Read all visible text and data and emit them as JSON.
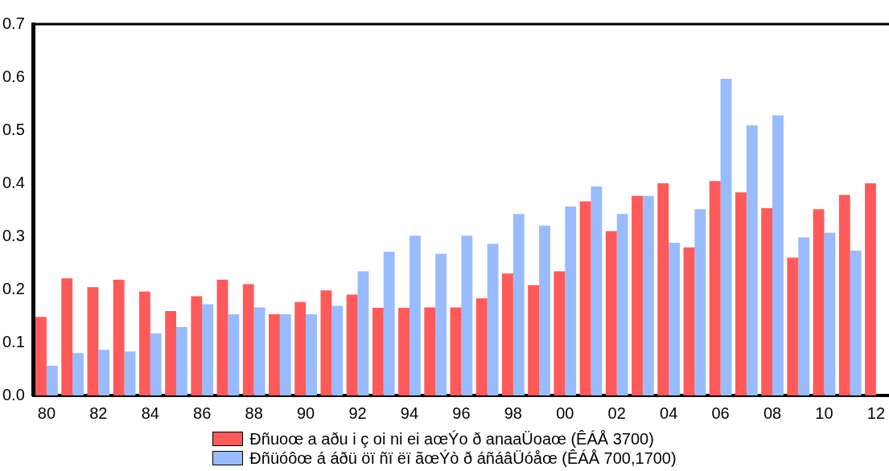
{
  "chart_data": {
    "type": "bar",
    "categories": [
      "80",
      null,
      "82",
      null,
      "84",
      null,
      "86",
      null,
      "88",
      null,
      "90",
      null,
      "92",
      null,
      "94",
      null,
      "96",
      null,
      "98",
      null,
      "00",
      null,
      "02",
      null,
      "04",
      null,
      "06",
      null,
      "08",
      null,
      "10",
      null,
      "12"
    ],
    "series": [
      {
        "name": "Ðñuoœ a aðu i ç oi ni ei aœÝo ð anaaÜoaœ (ÊÁÅ 3700)",
        "color": "#ff5a5a",
        "values": [
          0.148,
          0.221,
          0.204,
          0.218,
          0.196,
          0.159,
          0.187,
          0.218,
          0.21,
          0.153,
          0.176,
          0.198,
          0.19,
          0.165,
          0.165,
          0.166,
          0.166,
          0.183,
          0.23,
          0.208,
          0.234,
          0.366,
          0.31,
          0.376,
          0.4,
          0.279,
          0.404,
          0.383,
          0.353,
          0.26,
          0.351,
          0.378,
          0.4
        ]
      },
      {
        "name": "Ðñüóôœ á áðü öï ñï ëï ãœÝò ð áñáâÜóåœ (ÊÁÅ 700,1700)",
        "color": "#99bbff",
        "values": [
          0.056,
          0.08,
          0.086,
          0.083,
          0.117,
          0.129,
          0.172,
          0.153,
          0.166,
          0.153,
          0.153,
          0.169,
          0.234,
          0.271,
          0.301,
          0.267,
          0.301,
          0.286,
          0.342,
          0.32,
          0.356,
          0.394,
          0.342,
          0.376,
          0.288,
          0.351,
          0.597,
          0.509,
          0.528,
          0.298,
          0.307,
          0.273,
          null
        ]
      }
    ],
    "ylim": [
      0,
      0.7
    ],
    "yticks": [
      {
        "value": 0,
        "label": "0.0"
      },
      0.1,
      0.2,
      0.3,
      0.4,
      0.5,
      0.6,
      0.7
    ],
    "grid": false,
    "legend": "bottom"
  }
}
